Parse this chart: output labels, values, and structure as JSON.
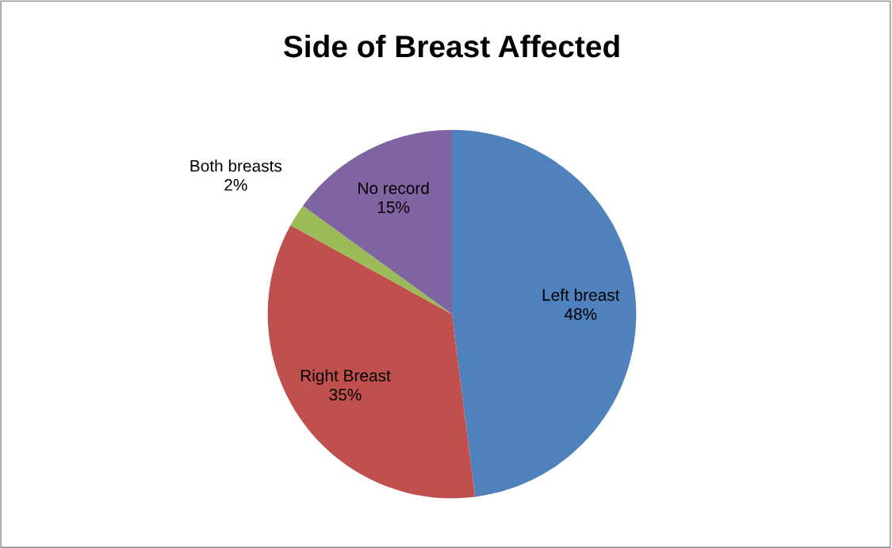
{
  "chart_data": {
    "type": "pie",
    "title": "Side of Breast Affected",
    "categories": [
      "Left breast",
      "Right Breast",
      "Both breasts",
      "No record"
    ],
    "values": [
      48,
      35,
      2,
      15
    ],
    "value_labels": [
      "48%",
      "35%",
      "2%",
      "15%"
    ],
    "colors": [
      "#4f81bd",
      "#c0504d",
      "#9bbb59",
      "#8064a2"
    ],
    "legend": false
  }
}
